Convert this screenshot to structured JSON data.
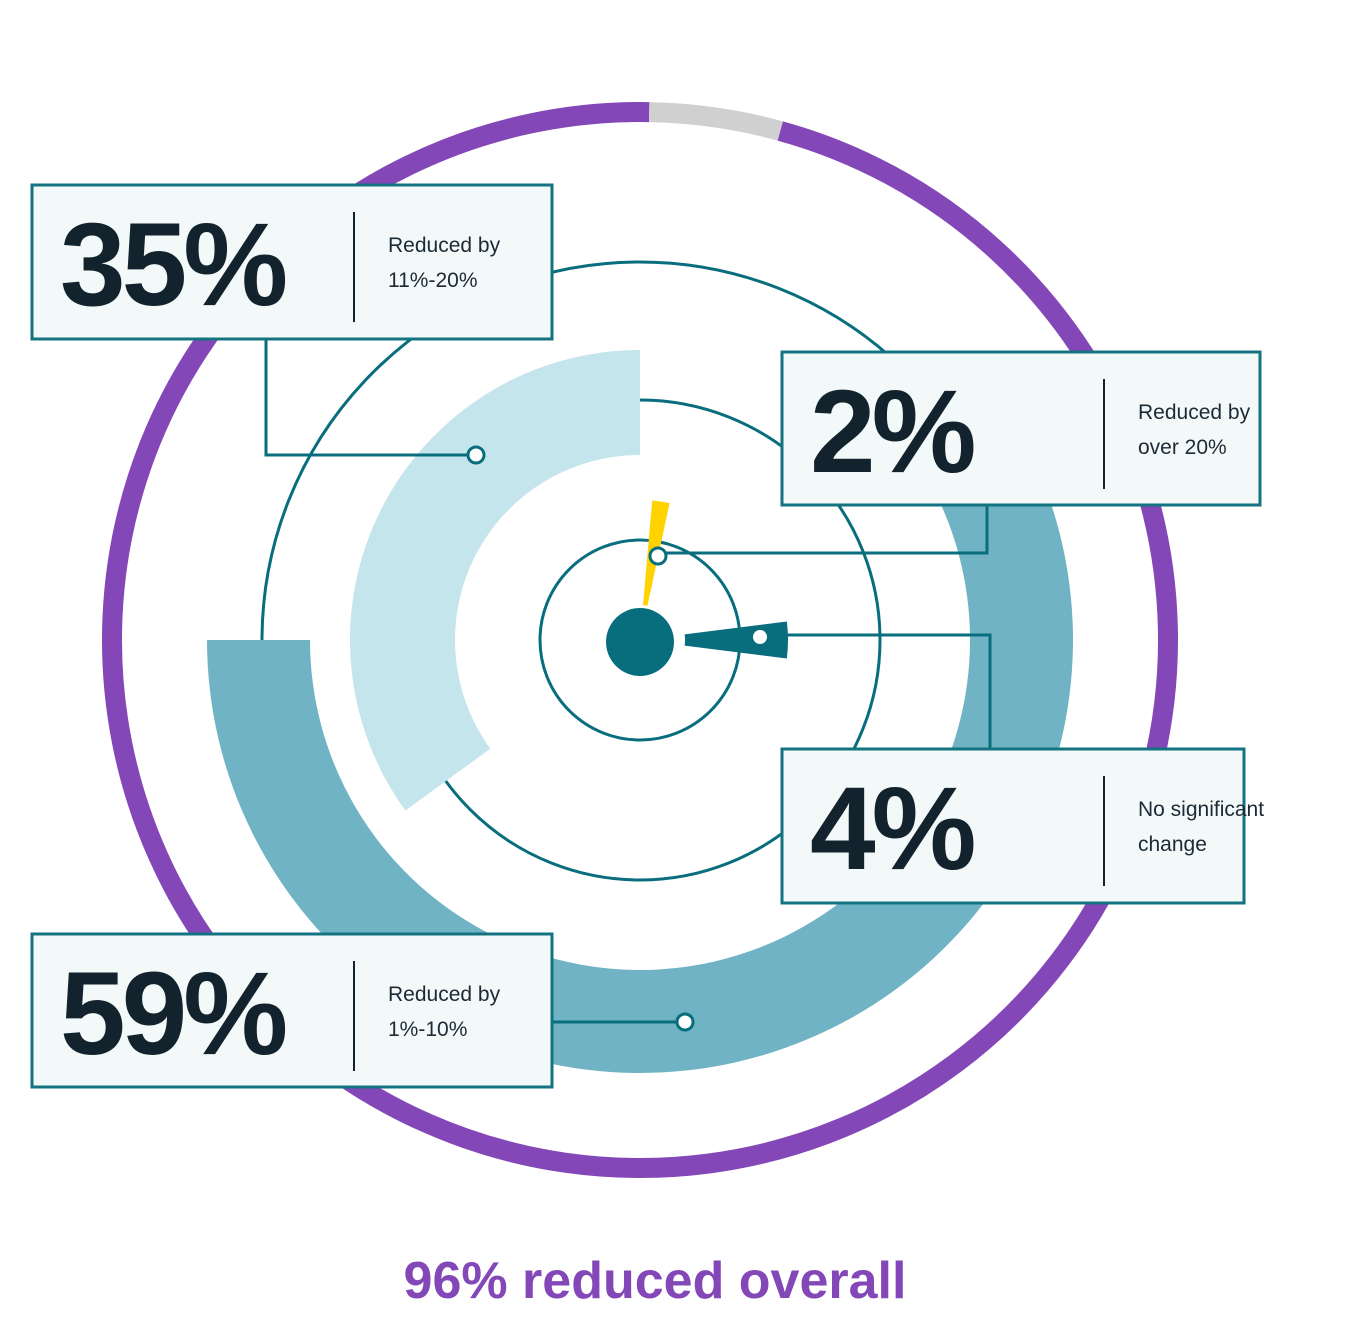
{
  "chart_data": {
    "type": "radial-bar",
    "categories": [
      "Reduced by 1%-10%",
      "Reduced by 11%-20%",
      "Reduced by over 20%",
      "No significant change"
    ],
    "values": [
      59,
      35,
      2,
      4
    ],
    "value_labels": [
      "59%",
      "35%",
      "2%",
      "4%"
    ],
    "colors": [
      "#6fb3c4",
      "#c5e5ec",
      "#ffd200",
      "#086e7d"
    ],
    "total": 96,
    "total_label": "96% reduced overall",
    "total_color": "#8447b8",
    "remainder_color": "#d0d0d0"
  }
}
